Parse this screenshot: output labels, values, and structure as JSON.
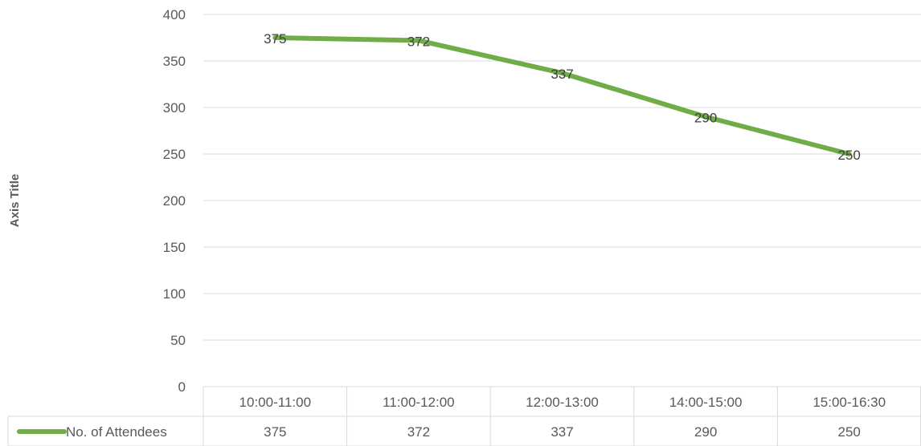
{
  "chart_data": {
    "type": "line",
    "title": "",
    "xlabel": "",
    "ylabel": "Axis Title",
    "categories": [
      "10:00-11:00",
      "11:00-12:00",
      "12:00-13:00",
      "14:00-15:00",
      "15:00-16:30"
    ],
    "series": [
      {
        "name": "No. of Attendees",
        "values": [
          375,
          372,
          337,
          290,
          250
        ],
        "color": "#70ad47"
      }
    ],
    "ylim": [
      0,
      400
    ],
    "yticks": [
      0,
      50,
      100,
      150,
      200,
      250,
      300,
      350,
      400
    ],
    "grid": true,
    "data_labels": true,
    "data_table": true,
    "legend": "data-table"
  }
}
